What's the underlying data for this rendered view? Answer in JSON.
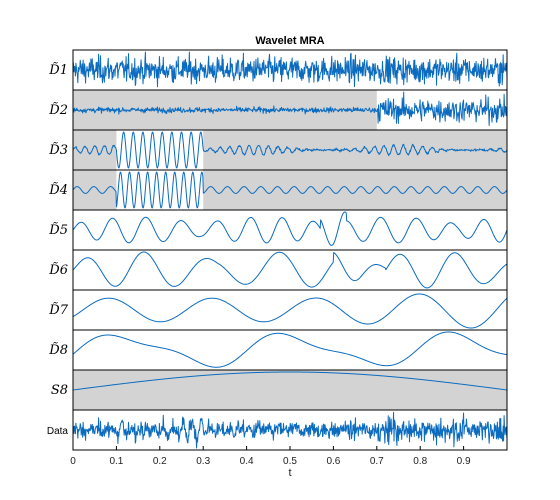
{
  "chart_data": {
    "type": "line",
    "title": "Wavelet MRA",
    "xlabel": "t",
    "xlim": [
      0,
      1
    ],
    "x_ticks": [
      0,
      0.1,
      0.2,
      0.3,
      0.4,
      0.5,
      0.6,
      0.7,
      0.8,
      0.9
    ],
    "x_tick_labels": [
      "0",
      "0.1",
      "0.2",
      "0.3",
      "0.4",
      "0.5",
      "0.6",
      "0.7",
      "0.8",
      "0.9"
    ],
    "grid": false,
    "line_color": "#0b6bbf",
    "highlight_color": "#d3d3d3",
    "panels": [
      {
        "label": "D̃1",
        "shaded": false,
        "shaded_ranges": []
      },
      {
        "label": "D̃2",
        "shaded": false,
        "shaded_ranges": [
          [
            0,
            0.7
          ]
        ]
      },
      {
        "label": "D̃3",
        "shaded": false,
        "shaded_ranges": [
          [
            0,
            0.1
          ],
          [
            0.3,
            1
          ]
        ]
      },
      {
        "label": "D̃4",
        "shaded": false,
        "shaded_ranges": [
          [
            0,
            0.1
          ],
          [
            0.3,
            1
          ]
        ]
      },
      {
        "label": "D̃5",
        "shaded": false,
        "shaded_ranges": []
      },
      {
        "label": "D̃6",
        "shaded": false,
        "shaded_ranges": []
      },
      {
        "label": "D̃7",
        "shaded": false,
        "shaded_ranges": []
      },
      {
        "label": "D̃8",
        "shaded": false,
        "shaded_ranges": []
      },
      {
        "label": "S8",
        "shaded": true,
        "shaded_ranges": [
          [
            0,
            1
          ]
        ]
      },
      {
        "label": "Data",
        "shaded": false,
        "shaded_ranges": []
      }
    ]
  }
}
